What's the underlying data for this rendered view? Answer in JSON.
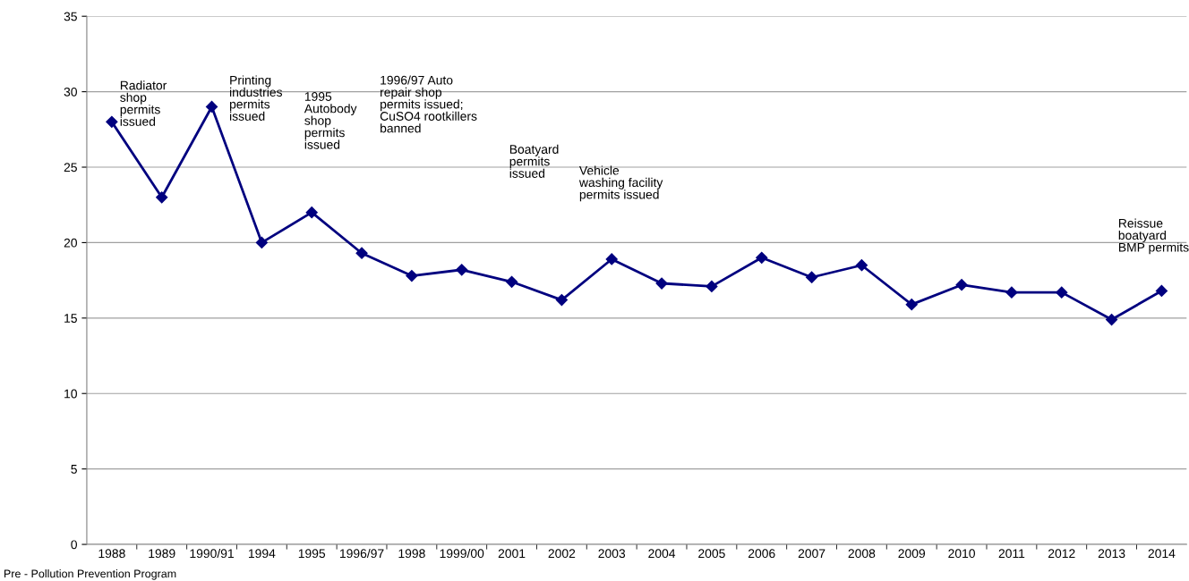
{
  "chart_data": {
    "type": "line",
    "categories": [
      "1988",
      "1989",
      "1990/91",
      "1994",
      "1995",
      "1996/97",
      "1998",
      "1999/00",
      "2001",
      "2002",
      "2003",
      "2004",
      "2005",
      "2006",
      "2007",
      "2008",
      "2009",
      "2010",
      "2011",
      "2012",
      "2013",
      "2014"
    ],
    "series": [
      {
        "color": "#00007f",
        "values": [
          28,
          23,
          29,
          20,
          22,
          19.3,
          17.8,
          18.2,
          17.4,
          16.2,
          18.9,
          17.3,
          17.1,
          19.0,
          17.7,
          18.5,
          15.9,
          17.2,
          16.7,
          16.7,
          14.9,
          16.8
        ]
      }
    ],
    "ylim": [
      0,
      35
    ],
    "yticks": [
      0,
      5,
      10,
      15,
      20,
      25,
      30,
      35
    ],
    "grid": "y",
    "marker": "diamond",
    "line_style": "solid",
    "annotations": [
      "Radiator\nshop\npermits\nissued",
      "Printing\nindustries\npermits\nissued",
      "1995\nAutobody\nshop\npermits\nissued",
      "1996/97 Auto\nrepair shop\npermits issued;\nCuSO4 rootkillers\nbanned",
      "Boatyard\npermits\nissued",
      "Vehicle\nwashing facility\npermits issued",
      "Reissue\nboatyard\nBMP permits",
      "Pre - Pollution Prevention Program"
    ]
  }
}
